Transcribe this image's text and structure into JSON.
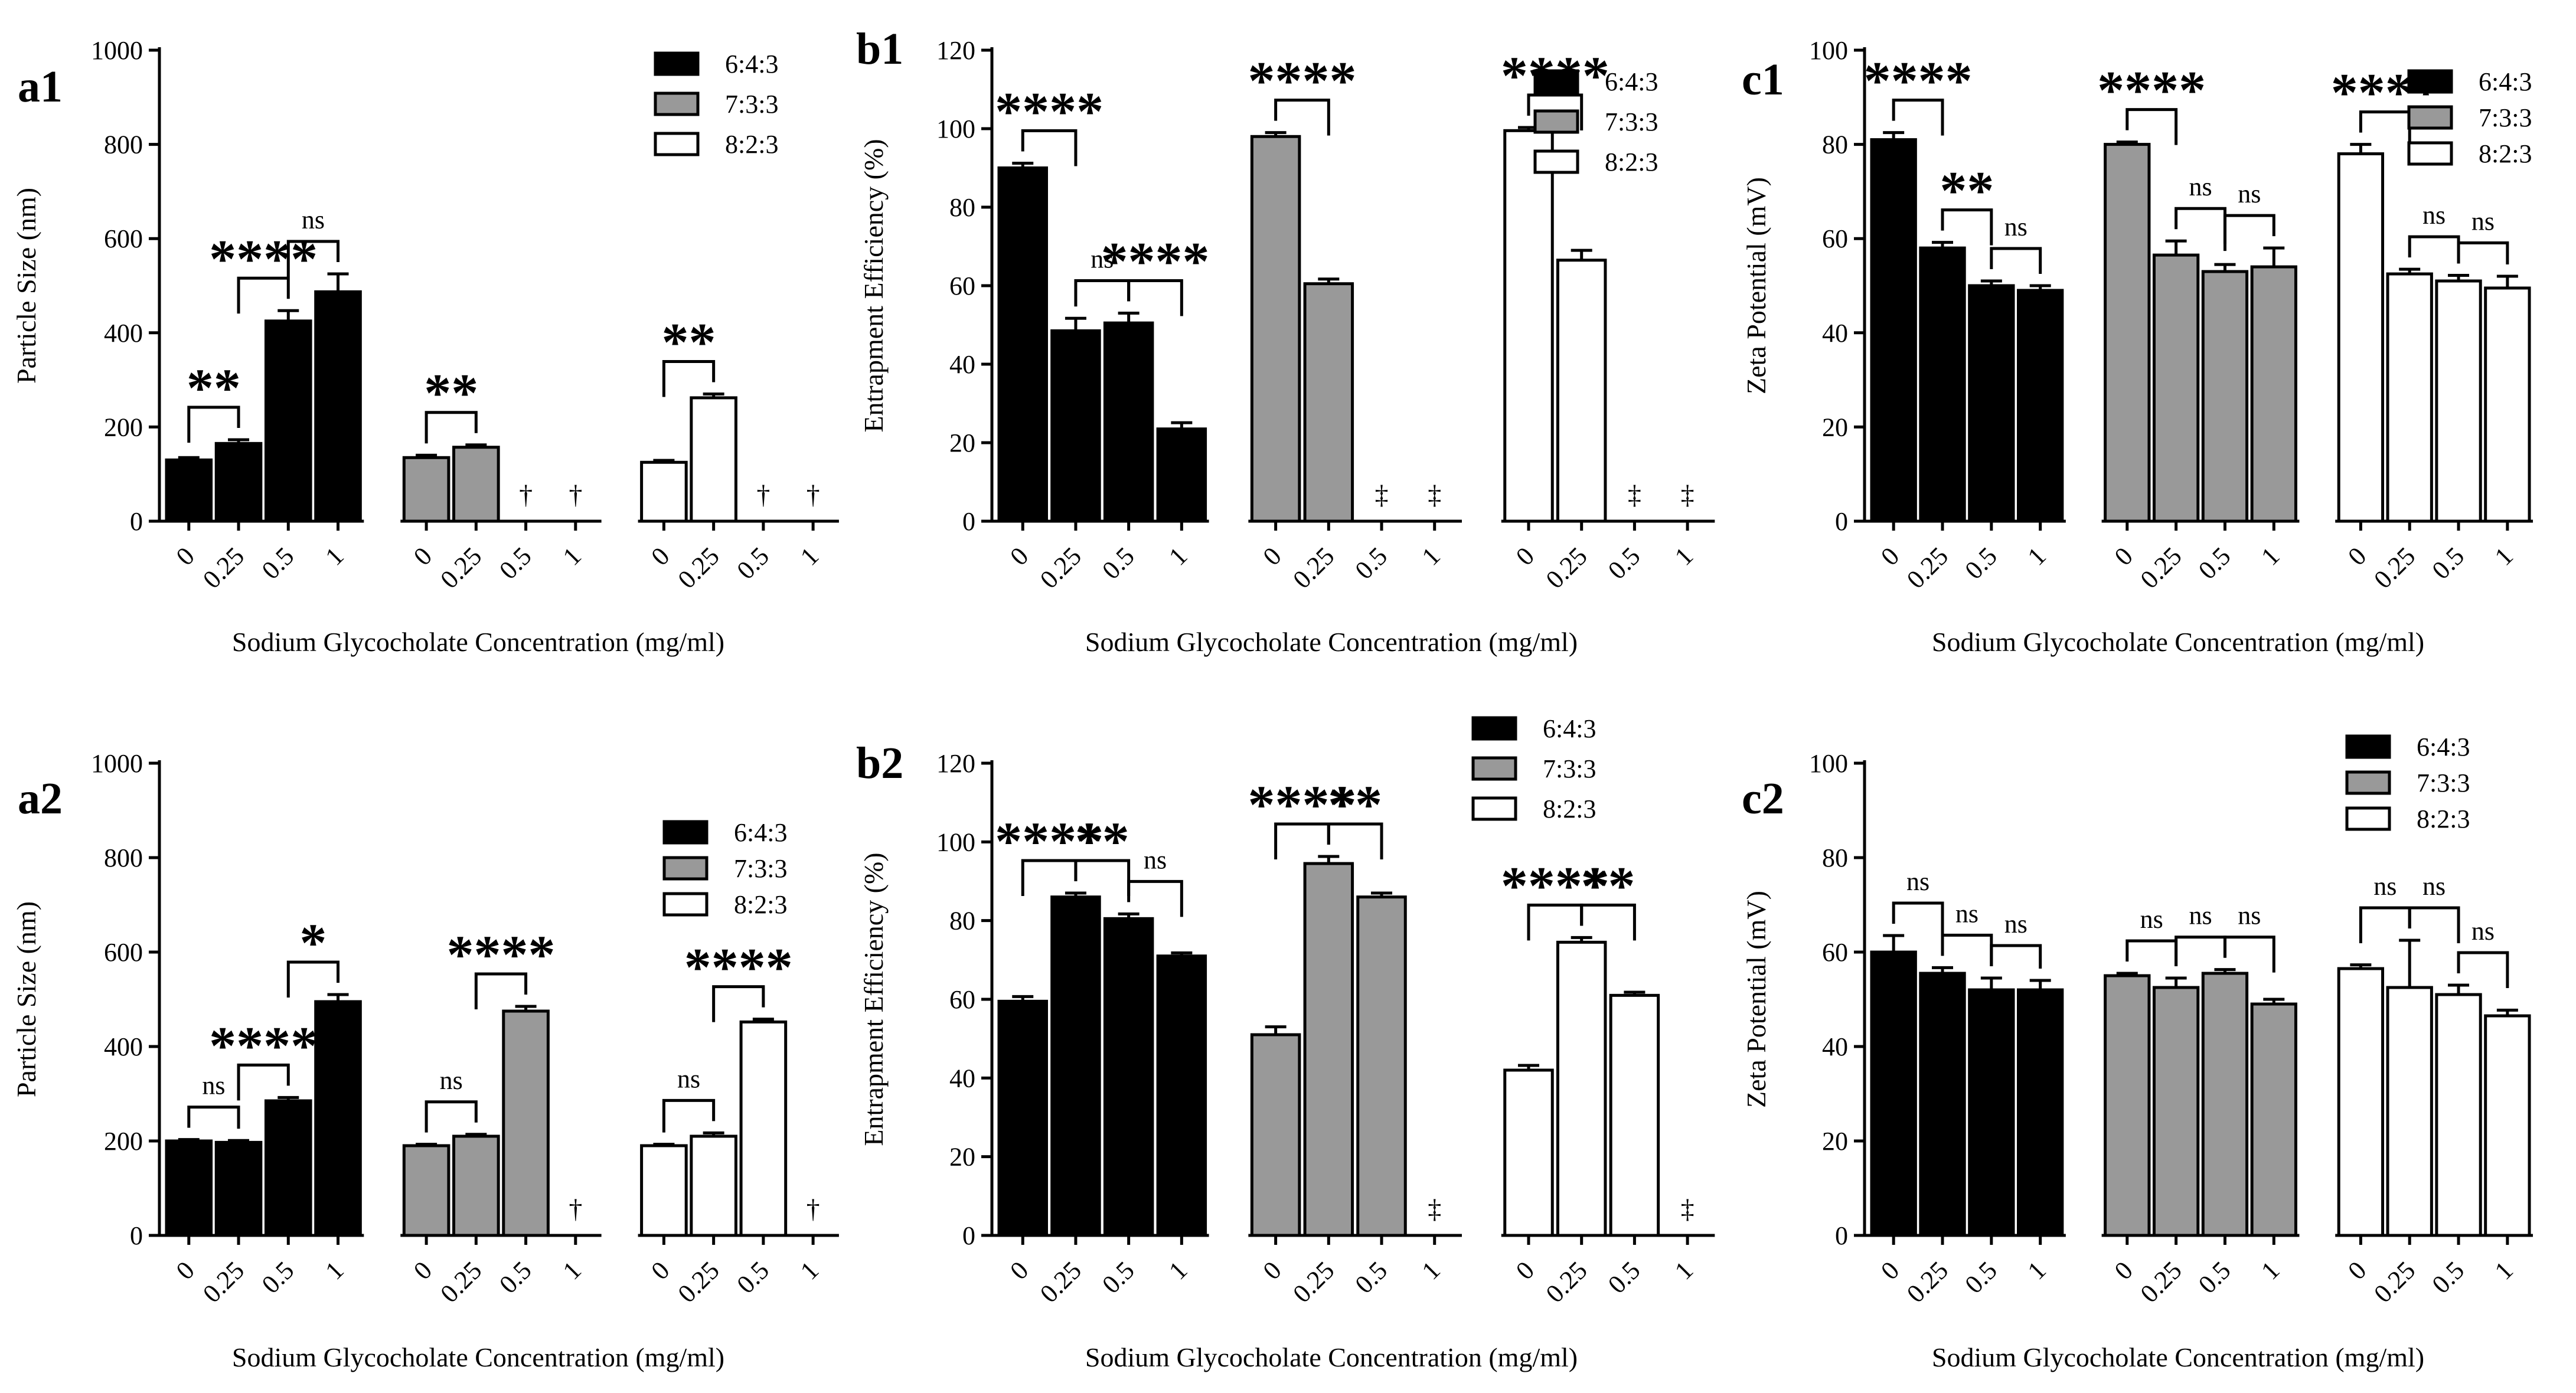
{
  "figure": {
    "categories": [
      "0",
      "0.25",
      "0.5",
      "1"
    ],
    "groups": [
      "6:4:3",
      "7:3:3",
      "8:2:3"
    ],
    "colors": {
      "6:4:3": "#000000",
      "7:3:3": "#999999",
      "8:2:3": "#ffffff",
      "stroke": "#000000"
    }
  },
  "chart_data": [
    {
      "panel_label": "a1",
      "type": "bar",
      "ylabel": "Particle Size (nm)",
      "xlabel": "Sodium Glycocholate Concentration (mg/ml)",
      "ylim": [
        0,
        1000
      ],
      "yticks": [
        "0",
        "200",
        "400",
        "600",
        "800",
        "1000"
      ],
      "legend_position": "top-right",
      "legend": [
        "6:4:3",
        "7:3:3",
        "8:2:3"
      ],
      "series": [
        {
          "name": "6:4:3",
          "values": [
            130,
            165,
            425,
            487
          ],
          "errors": [
            5,
            8,
            22,
            38
          ]
        },
        {
          "name": "7:3:3",
          "values": [
            135,
            157,
            null,
            null
          ],
          "errors": [
            5,
            5,
            null,
            null
          ],
          "markers": [
            "",
            "",
            "†",
            "†"
          ]
        },
        {
          "name": "8:2:3",
          "values": [
            125,
            262,
            null,
            null
          ],
          "errors": [
            4,
            8,
            null,
            null
          ],
          "markers": [
            "",
            "",
            "†",
            "†"
          ]
        }
      ],
      "comparisons": [
        {
          "group": 0,
          "from": 0,
          "to": 1,
          "label": "**"
        },
        {
          "group": 0,
          "from": 1,
          "to": 2,
          "label": "****"
        },
        {
          "group": 0,
          "from": 2,
          "to": 3,
          "label": "ns"
        },
        {
          "group": 1,
          "from": 0,
          "to": 1,
          "label": "**"
        },
        {
          "group": 2,
          "from": 0,
          "to": 1,
          "label": "**"
        }
      ]
    },
    {
      "panel_label": "b1",
      "type": "bar",
      "ylabel": "Entrapment Efficiency (%)",
      "xlabel": "Sodium Glycocholate Concentration (mg/ml)",
      "ylim": [
        0,
        120
      ],
      "yticks": [
        "0",
        "20",
        "40",
        "60",
        "80",
        "100",
        "120"
      ],
      "legend_position": "top-right",
      "legend": [
        "6:4:3",
        "7:3:3",
        "8:2:3"
      ],
      "series": [
        {
          "name": "6:4:3",
          "values": [
            90,
            48.5,
            50.5,
            23.5
          ],
          "errors": [
            1.2,
            3.2,
            2.5,
            1.6
          ]
        },
        {
          "name": "7:3:3",
          "values": [
            98,
            60.5,
            null,
            null
          ],
          "errors": [
            1,
            1.2,
            null,
            null
          ],
          "markers": [
            "",
            "",
            "‡",
            "‡"
          ]
        },
        {
          "name": "8:2:3",
          "values": [
            99.5,
            66.5,
            null,
            null
          ],
          "errors": [
            0.8,
            2.5,
            null,
            null
          ],
          "markers": [
            "",
            "",
            "‡",
            "‡"
          ]
        }
      ],
      "comparisons": [
        {
          "group": 0,
          "from": 0,
          "to": 1,
          "label": "****"
        },
        {
          "group": 0,
          "from": 1,
          "to": 2,
          "label": "ns"
        },
        {
          "group": 0,
          "from": 2,
          "to": 3,
          "label": "****"
        },
        {
          "group": 1,
          "from": 0,
          "to": 1,
          "label": "****"
        },
        {
          "group": 2,
          "from": 0,
          "to": 1,
          "label": "****"
        }
      ]
    },
    {
      "panel_label": "c1",
      "type": "bar",
      "ylabel": "Zeta Potential (mV)",
      "xlabel": "Sodium Glycocholate Concentration (mg/ml)",
      "ylim": [
        0,
        100
      ],
      "yticks": [
        "0",
        "20",
        "40",
        "60",
        "80",
        "100"
      ],
      "legend_position": "top-right",
      "legend": [
        "6:4:3",
        "7:3:3",
        "8:2:3"
      ],
      "series": [
        {
          "name": "6:4:3",
          "values": [
            81,
            58,
            50,
            49
          ],
          "errors": [
            1.5,
            1.2,
            1,
            1
          ]
        },
        {
          "name": "7:3:3",
          "values": [
            80,
            56.5,
            53,
            54
          ],
          "errors": [
            0.5,
            3,
            1.5,
            4
          ]
        },
        {
          "name": "8:2:3",
          "values": [
            78,
            52.5,
            51,
            49.5
          ],
          "errors": [
            2,
            1,
            1.2,
            2.5
          ]
        }
      ],
      "comparisons": [
        {
          "group": 0,
          "from": 0,
          "to": 1,
          "label": "****"
        },
        {
          "group": 0,
          "from": 1,
          "to": 2,
          "label": "**"
        },
        {
          "group": 0,
          "from": 2,
          "to": 3,
          "label": "ns"
        },
        {
          "group": 1,
          "from": 0,
          "to": 1,
          "label": "****"
        },
        {
          "group": 1,
          "from": 1,
          "to": 2,
          "label": "ns"
        },
        {
          "group": 1,
          "from": 2,
          "to": 3,
          "label": "ns"
        },
        {
          "group": 2,
          "from": 0,
          "to": 1,
          "label": "****"
        },
        {
          "group": 2,
          "from": 1,
          "to": 2,
          "label": "ns"
        },
        {
          "group": 2,
          "from": 2,
          "to": 3,
          "label": "ns"
        }
      ]
    },
    {
      "panel_label": "a2",
      "type": "bar",
      "ylabel": "Particle Size (nm)",
      "xlabel": "Sodium Glycocholate Concentration (mg/ml)",
      "ylim": [
        0,
        1000
      ],
      "yticks": [
        "0",
        "200",
        "400",
        "600",
        "800",
        "1000"
      ],
      "legend_position": "right",
      "legend": [
        "6:4:3",
        "7:3:3",
        "8:2:3"
      ],
      "series": [
        {
          "name": "6:4:3",
          "values": [
            200,
            197,
            285,
            495
          ],
          "errors": [
            3,
            4,
            7,
            15
          ]
        },
        {
          "name": "7:3:3",
          "values": [
            190,
            210,
            475,
            null
          ],
          "errors": [
            3,
            4,
            10,
            null
          ],
          "markers": [
            "",
            "",
            "",
            "†"
          ]
        },
        {
          "name": "8:2:3",
          "values": [
            190,
            210,
            452,
            null
          ],
          "errors": [
            3,
            7,
            6,
            null
          ],
          "markers": [
            "",
            "",
            "",
            "†"
          ]
        }
      ],
      "comparisons": [
        {
          "group": 0,
          "from": 0,
          "to": 1,
          "label": "ns"
        },
        {
          "group": 0,
          "from": 1,
          "to": 2,
          "label": "****"
        },
        {
          "group": 0,
          "from": 2,
          "to": 3,
          "label": "*"
        },
        {
          "group": 1,
          "from": 0,
          "to": 1,
          "label": "ns"
        },
        {
          "group": 1,
          "from": 1,
          "to": 2,
          "label": "****"
        },
        {
          "group": 2,
          "from": 0,
          "to": 1,
          "label": "ns"
        },
        {
          "group": 2,
          "from": 1,
          "to": 2,
          "label": "****"
        }
      ]
    },
    {
      "panel_label": "b2",
      "type": "bar",
      "ylabel": "Entrapment Efficiency (%)",
      "xlabel": "Sodium Glycocholate Concentration (mg/ml)",
      "ylim": [
        0,
        120
      ],
      "yticks": [
        "0",
        "20",
        "40",
        "60",
        "80",
        "100",
        "120"
      ],
      "legend_position": "top-right",
      "legend": [
        "6:4:3",
        "7:3:3",
        "8:2:3"
      ],
      "series": [
        {
          "name": "6:4:3",
          "values": [
            59.5,
            86,
            80.5,
            71
          ],
          "errors": [
            1.2,
            1,
            1.2,
            0.8
          ]
        },
        {
          "name": "7:3:3",
          "values": [
            51,
            94.5,
            86,
            null
          ],
          "errors": [
            2,
            1.8,
            1,
            null
          ],
          "markers": [
            "",
            "",
            "",
            "‡"
          ]
        },
        {
          "name": "8:2:3",
          "values": [
            42,
            74.5,
            61,
            null
          ],
          "errors": [
            1.2,
            1.2,
            0.8,
            null
          ],
          "markers": [
            "",
            "",
            "",
            "‡"
          ]
        }
      ],
      "comparisons": [
        {
          "group": 0,
          "from": 0,
          "to": 1,
          "label": "****"
        },
        {
          "group": 0,
          "from": 1,
          "to": 2,
          "label": "**"
        },
        {
          "group": 0,
          "from": 2,
          "to": 3,
          "label": "ns"
        },
        {
          "group": 1,
          "from": 0,
          "to": 1,
          "label": "****"
        },
        {
          "group": 1,
          "from": 1,
          "to": 2,
          "label": "**"
        },
        {
          "group": 2,
          "from": 0,
          "to": 1,
          "label": "****"
        },
        {
          "group": 2,
          "from": 1,
          "to": 2,
          "label": "**"
        }
      ]
    },
    {
      "panel_label": "c2",
      "type": "bar",
      "ylabel": "Zeta Potential (mV)",
      "xlabel": "Sodium Glycocholate Concentration (mg/ml)",
      "ylim": [
        0,
        100
      ],
      "yticks": [
        "0",
        "20",
        "40",
        "60",
        "80",
        "100"
      ],
      "legend_position": "top-right",
      "legend": [
        "6:4:3",
        "7:3:3",
        "8:2:3"
      ],
      "series": [
        {
          "name": "6:4:3",
          "values": [
            60,
            55.5,
            52,
            52
          ],
          "errors": [
            3.5,
            1.2,
            2.5,
            2
          ]
        },
        {
          "name": "7:3:3",
          "values": [
            55,
            52.5,
            55.5,
            49
          ],
          "errors": [
            0.5,
            2,
            0.8,
            1
          ]
        },
        {
          "name": "8:2:3",
          "values": [
            56.5,
            52.5,
            51,
            46.5
          ],
          "errors": [
            0.8,
            10,
            2,
            1.2
          ]
        }
      ],
      "comparisons": [
        {
          "group": 0,
          "from": 0,
          "to": 1,
          "label": "ns"
        },
        {
          "group": 0,
          "from": 1,
          "to": 2,
          "label": "ns"
        },
        {
          "group": 0,
          "from": 2,
          "to": 3,
          "label": "ns"
        },
        {
          "group": 1,
          "from": 0,
          "to": 1,
          "label": "ns"
        },
        {
          "group": 1,
          "from": 1,
          "to": 2,
          "label": "ns"
        },
        {
          "group": 1,
          "from": 2,
          "to": 3,
          "label": "ns"
        },
        {
          "group": 2,
          "from": 0,
          "to": 1,
          "label": "ns"
        },
        {
          "group": 2,
          "from": 1,
          "to": 2,
          "label": "ns"
        },
        {
          "group": 2,
          "from": 2,
          "to": 3,
          "label": "ns"
        }
      ]
    }
  ]
}
